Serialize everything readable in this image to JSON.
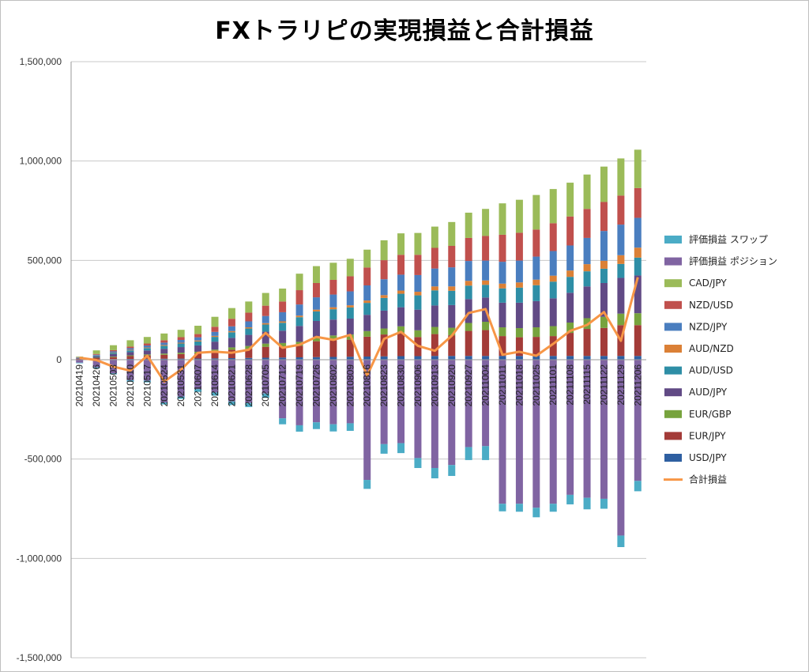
{
  "chart_data": {
    "type": "bar",
    "title": "FXトラリピの実現損益と合計損益",
    "ylim": [
      -1500000,
      1500000
    ],
    "yticks": [
      {
        "value": 1500000,
        "label": "1,500,000"
      },
      {
        "value": 1000000,
        "label": "1,000,000"
      },
      {
        "value": 500000,
        "label": "500,000"
      },
      {
        "value": 0,
        "label": "0"
      },
      {
        "value": -500000,
        "label": "-500,000"
      },
      {
        "value": -1000000,
        "label": "-1,000,000"
      },
      {
        "value": -1500000,
        "label": "-1,500,000"
      }
    ],
    "negative_tick_color": "#ff0000",
    "grid": true,
    "legend_position": "right",
    "categories": [
      "20210419",
      "20210426",
      "20210503",
      "20210510",
      "20210517",
      "20210524",
      "20210531",
      "20210607",
      "20210614",
      "20210621",
      "20210628",
      "20210705",
      "20210712",
      "20210719",
      "20210726",
      "20210802",
      "20210809",
      "20210816",
      "20210823",
      "20210830",
      "20210906",
      "20210913",
      "20210920",
      "20210927",
      "20211004",
      "20211011",
      "20211018",
      "20211025",
      "20211101",
      "20211108",
      "20211115",
      "20211122",
      "20211129",
      "20211206"
    ],
    "stacked_series": [
      {
        "name": "USD/JPY",
        "color": "#2e5fa1",
        "values": [
          1000,
          2000,
          3000,
          4000,
          4500,
          5000,
          5500,
          6000,
          7000,
          8000,
          9000,
          10000,
          11000,
          12000,
          13000,
          14000,
          15000,
          16000,
          17000,
          18000,
          18000,
          19000,
          19000,
          19000,
          19000,
          19000,
          19000,
          19000,
          19000,
          19000,
          19000,
          19000,
          19000,
          19000
        ]
      },
      {
        "name": "EUR/JPY",
        "color": "#a33b38",
        "values": [
          3000,
          6000,
          10000,
          14000,
          17000,
          20000,
          23000,
          26000,
          34000,
          42000,
          46000,
          55000,
          55000,
          58000,
          80000,
          84000,
          86000,
          100000,
          110000,
          118000,
          96000,
          110000,
          104000,
          126000,
          130000,
          100000,
          94000,
          96000,
          100000,
          116000,
          136000,
          141000,
          155000,
          155000
        ]
      },
      {
        "name": "EUR/GBP",
        "color": "#77a33d",
        "values": [
          1000,
          2000,
          3000,
          4000,
          5000,
          6000,
          7000,
          8000,
          10000,
          12000,
          14000,
          16000,
          18000,
          20000,
          22000,
          24000,
          26000,
          28000,
          30000,
          32000,
          34000,
          36000,
          38000,
          40000,
          42000,
          44000,
          46000,
          48000,
          50000,
          52000,
          54000,
          56000,
          58000,
          60000
        ]
      },
      {
        "name": "AUD/JPY",
        "color": "#614a85",
        "values": [
          3000,
          7000,
          12000,
          16000,
          20000,
          24000,
          28000,
          32000,
          40000,
          48000,
          56000,
          60000,
          62000,
          80000,
          80000,
          80000,
          80000,
          82000,
          90000,
          96000,
          104000,
          108000,
          114000,
          120000,
          122000,
          124000,
          128000,
          132000,
          140000,
          150000,
          160000,
          170000,
          180000,
          190000
        ]
      },
      {
        "name": "AUD/USD",
        "color": "#2e8ea6",
        "values": [
          1000,
          3000,
          6000,
          9000,
          12000,
          15000,
          18000,
          20000,
          24000,
          28000,
          32000,
          36000,
          40000,
          44000,
          48000,
          52000,
          56000,
          60000,
          64000,
          68000,
          72000,
          76000,
          72000,
          68000,
          64000,
          72000,
          76000,
          80000,
          84000,
          80000,
          76000,
          72000,
          70000,
          90000
        ]
      },
      {
        "name": "AUD/NZD",
        "color": "#db8036",
        "values": [
          0,
          1000,
          2000,
          3000,
          3000,
          4000,
          4000,
          5000,
          5000,
          6000,
          6000,
          7000,
          7000,
          8000,
          9000,
          10000,
          11000,
          12000,
          14000,
          16000,
          18000,
          20000,
          22000,
          24000,
          22000,
          24000,
          26000,
          28000,
          30000,
          32000,
          36000,
          40000,
          44000,
          50000
        ]
      },
      {
        "name": "NZD/JPY",
        "color": "#4a7ebf",
        "values": [
          2000,
          4000,
          6000,
          8000,
          10000,
          12000,
          14000,
          16000,
          20000,
          24000,
          30000,
          36000,
          46000,
          56000,
          62000,
          64000,
          70000,
          76000,
          80000,
          80000,
          84000,
          90000,
          96000,
          100000,
          100000,
          110000,
          110000,
          116000,
          124000,
          126000,
          132000,
          150000,
          154000,
          150000
        ]
      },
      {
        "name": "NZD/USD",
        "color": "#c0504d",
        "values": [
          2000,
          4000,
          6000,
          8000,
          10000,
          12000,
          14000,
          16000,
          26000,
          38000,
          44000,
          52000,
          54000,
          72000,
          72000,
          74000,
          76000,
          90000,
          96000,
          100000,
          102000,
          104000,
          108000,
          116000,
          124000,
          136000,
          140000,
          136000,
          140000,
          146000,
          146000,
          146000,
          146000,
          150000
        ]
      },
      {
        "name": "CAD/JPY",
        "color": "#9bbb59",
        "values": [
          3000,
          18000,
          25000,
          32000,
          33000,
          34000,
          37000,
          42000,
          50000,
          54000,
          56000,
          64000,
          65000,
          83000,
          85000,
          86000,
          88000,
          90000,
          100000,
          108000,
          110000,
          107000,
          120000,
          127000,
          136000,
          158000,
          166000,
          174000,
          172000,
          170000,
          173000,
          178000,
          187000,
          193000
        ]
      }
    ],
    "negative_series": [
      {
        "name": "評価損益 ポジション",
        "color": "#8064a2",
        "values": [
          -15000,
          -38000,
          -68000,
          -103000,
          -105000,
          -215000,
          -185000,
          -148000,
          -165000,
          -210000,
          -218000,
          -170000,
          -295000,
          -330000,
          -315000,
          -325000,
          -320000,
          -605000,
          -425000,
          -420000,
          -495000,
          -545000,
          -530000,
          -440000,
          -435000,
          -725000,
          -725000,
          -745000,
          -725000,
          -680000,
          -695000,
          -700000,
          -885000,
          -610000
        ]
      },
      {
        "name": "評価損益 スワップ",
        "color": "#4bacc6",
        "values": [
          -3000,
          -5000,
          -6000,
          -8000,
          -9000,
          -10000,
          -12000,
          -14000,
          -16000,
          -18000,
          -20000,
          -22000,
          -30000,
          -32000,
          -34000,
          -36000,
          -38000,
          -45000,
          -48000,
          -50000,
          -50000,
          -52000,
          -55000,
          -65000,
          -70000,
          -38000,
          -40000,
          -48000,
          -40000,
          -48000,
          -58000,
          -50000,
          -58000,
          -52000
        ]
      }
    ],
    "total_line": {
      "name": "合計損益",
      "color": "#f79646",
      "values": [
        10000,
        -2000,
        -35000,
        -55000,
        20000,
        -110000,
        -50000,
        35000,
        40000,
        35000,
        50000,
        135000,
        60000,
        75000,
        115000,
        100000,
        125000,
        -80000,
        105000,
        140000,
        70000,
        45000,
        120000,
        235000,
        255000,
        25000,
        40000,
        20000,
        80000,
        145000,
        175000,
        240000,
        95000,
        415000
      ]
    },
    "legend": [
      "評価損益 スワップ",
      "評価損益 ポジション",
      "CAD/JPY",
      "NZD/USD",
      "NZD/JPY",
      "AUD/NZD",
      "AUD/USD",
      "AUD/JPY",
      "EUR/GBP",
      "EUR/JPY",
      "USD/JPY",
      "合計損益"
    ]
  }
}
